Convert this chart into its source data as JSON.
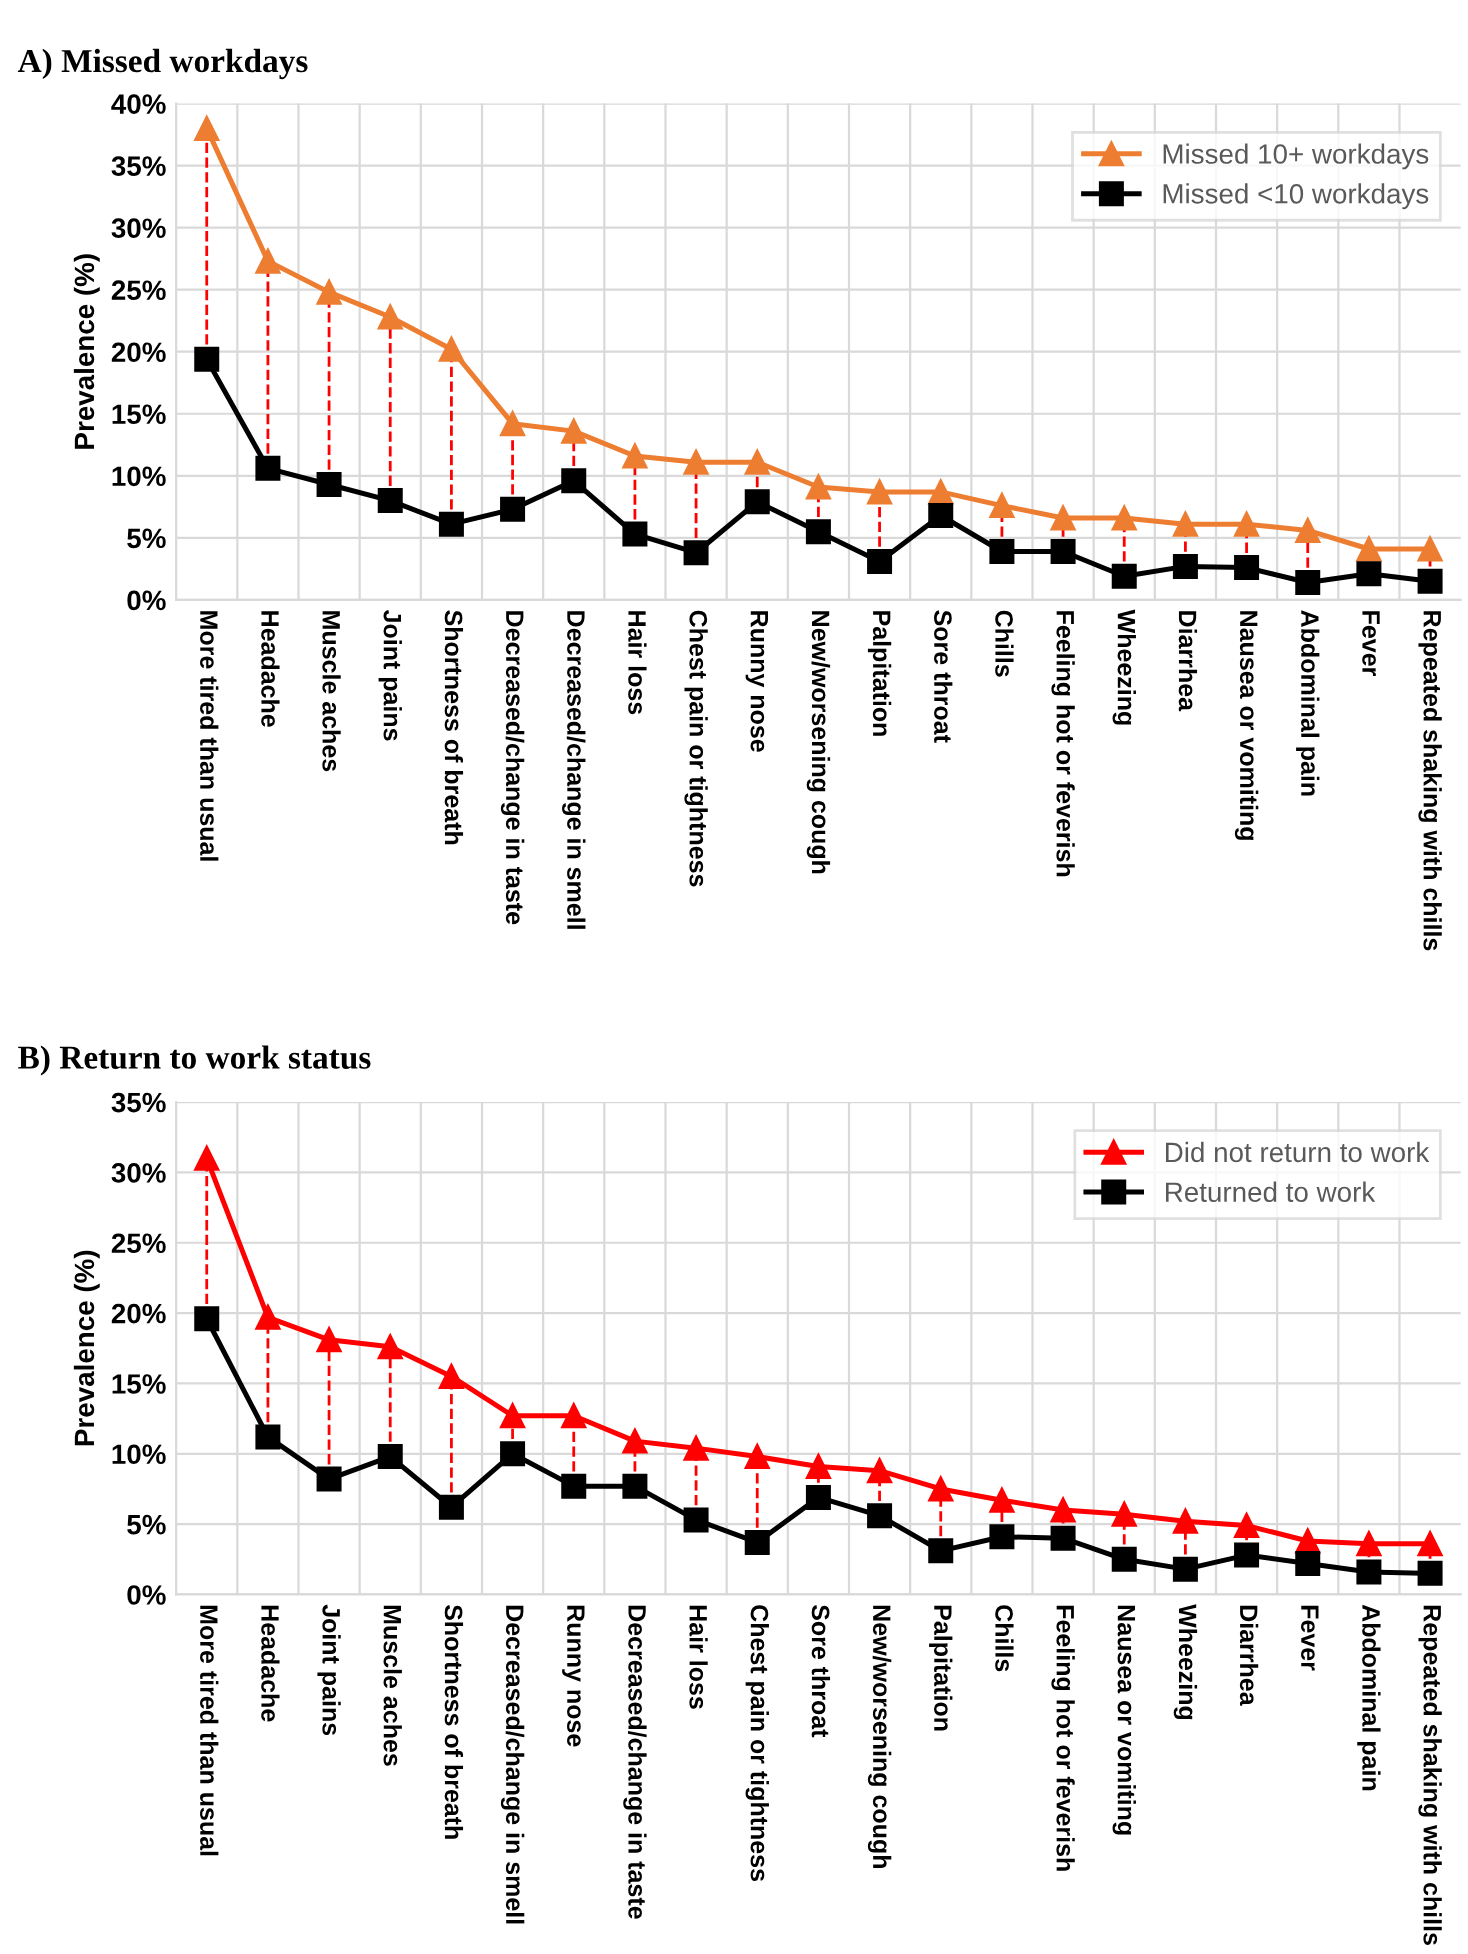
{
  "chart_data": [
    {
      "type": "line",
      "title": "A) Missed workdays",
      "ylabel": "Prevalence (%)",
      "categories": [
        "More tired than usual",
        "Headache",
        "Muscle aches",
        "Joint pains",
        "Shortness of breath",
        "Decreased/change in taste",
        "Decreased/change in smell",
        "Hair loss",
        "Chest pain or tightness",
        "Runny nose",
        "New/worsening cough",
        "Palpitation",
        "Sore throat",
        "Chills",
        "Feeling hot or feverish",
        "Wheezing",
        "Diarrhea",
        "Nausea or vomiting",
        "Abdominal pain",
        "Fever",
        "Repeated shaking with chills"
      ],
      "series": [
        {
          "name": "Missed 10+ workdays",
          "color": "#ed7d31",
          "marker": "triangle",
          "values": [
            38,
            27.3,
            24.8,
            22.8,
            20.2,
            14.2,
            13.6,
            11.6,
            11.1,
            11.1,
            9.1,
            8.7,
            8.7,
            7.6,
            6.6,
            6.6,
            6.1,
            6.1,
            5.6,
            4.1,
            4.1
          ]
        },
        {
          "name": "Missed <10 workdays",
          "color": "#000000",
          "marker": "square",
          "values": [
            19.4,
            10.6,
            9.3,
            8.0,
            6.1,
            7.3,
            9.6,
            5.3,
            3.8,
            7.9,
            5.5,
            3.1,
            6.8,
            3.9,
            3.9,
            1.9,
            2.7,
            2.6,
            1.4,
            2.1,
            1.5
          ]
        }
      ],
      "ylim": [
        0,
        40
      ],
      "yticks": [
        {
          "value": 0,
          "label": "0%"
        },
        {
          "value": 5,
          "label": "5%"
        },
        {
          "value": 10,
          "label": "10%"
        },
        {
          "value": 15,
          "label": "15%"
        },
        {
          "value": 20,
          "label": "20%"
        },
        {
          "value": 25,
          "label": "25%"
        },
        {
          "value": 30,
          "label": "30%"
        },
        {
          "value": 35,
          "label": "35%"
        },
        {
          "value": 40,
          "label": "40%"
        }
      ],
      "grid": true,
      "legend": "top right",
      "line_style": "solid"
    },
    {
      "type": "line",
      "title": "B) Return to work status",
      "ylabel": "Prevalence (%)",
      "categories": [
        "More tired than usual",
        "Headache",
        "Joint pains",
        "Muscle aches",
        "Shortness of breath",
        "Decreased/change in smell",
        "Runny nose",
        "Decreased/change in taste",
        "Hair loss",
        "Chest pain or tightness",
        "Sore throat",
        "New/worsening cough",
        "Palpitation",
        "Chills",
        "Feeling hot or feverish",
        "Nausea or vomiting",
        "Wheezing",
        "Diarrhea",
        "Fever",
        "Abdominal pain",
        "Repeated shaking with chills"
      ],
      "series": [
        {
          "name": "Did not return to work",
          "color": "#ff0000",
          "marker": "triangle",
          "values": [
            31.0,
            19.7,
            18.1,
            17.6,
            15.5,
            12.7,
            12.7,
            10.9,
            10.4,
            9.8,
            9.1,
            8.8,
            7.5,
            6.7,
            6.0,
            5.7,
            5.2,
            4.9,
            3.8,
            3.6,
            3.6
          ]
        },
        {
          "name": "Returned to work",
          "color": "#000000",
          "marker": "square",
          "values": [
            19.6,
            11.2,
            8.2,
            9.8,
            6.2,
            10.0,
            7.7,
            7.7,
            5.3,
            3.7,
            6.9,
            5.6,
            3.1,
            4.1,
            4.0,
            2.5,
            1.8,
            2.8,
            2.2,
            1.6,
            1.5
          ]
        }
      ],
      "ylim": [
        0,
        35
      ],
      "yticks": [
        {
          "value": 0,
          "label": "0%"
        },
        {
          "value": 5,
          "label": "5%"
        },
        {
          "value": 10,
          "label": "10%"
        },
        {
          "value": 15,
          "label": "15%"
        },
        {
          "value": 20,
          "label": "20%"
        },
        {
          "value": 25,
          "label": "25%"
        },
        {
          "value": 30,
          "label": "30%"
        },
        {
          "value": 35,
          "label": "35%"
        }
      ],
      "grid": true,
      "legend": "top right",
      "line_style": "solid"
    }
  ]
}
